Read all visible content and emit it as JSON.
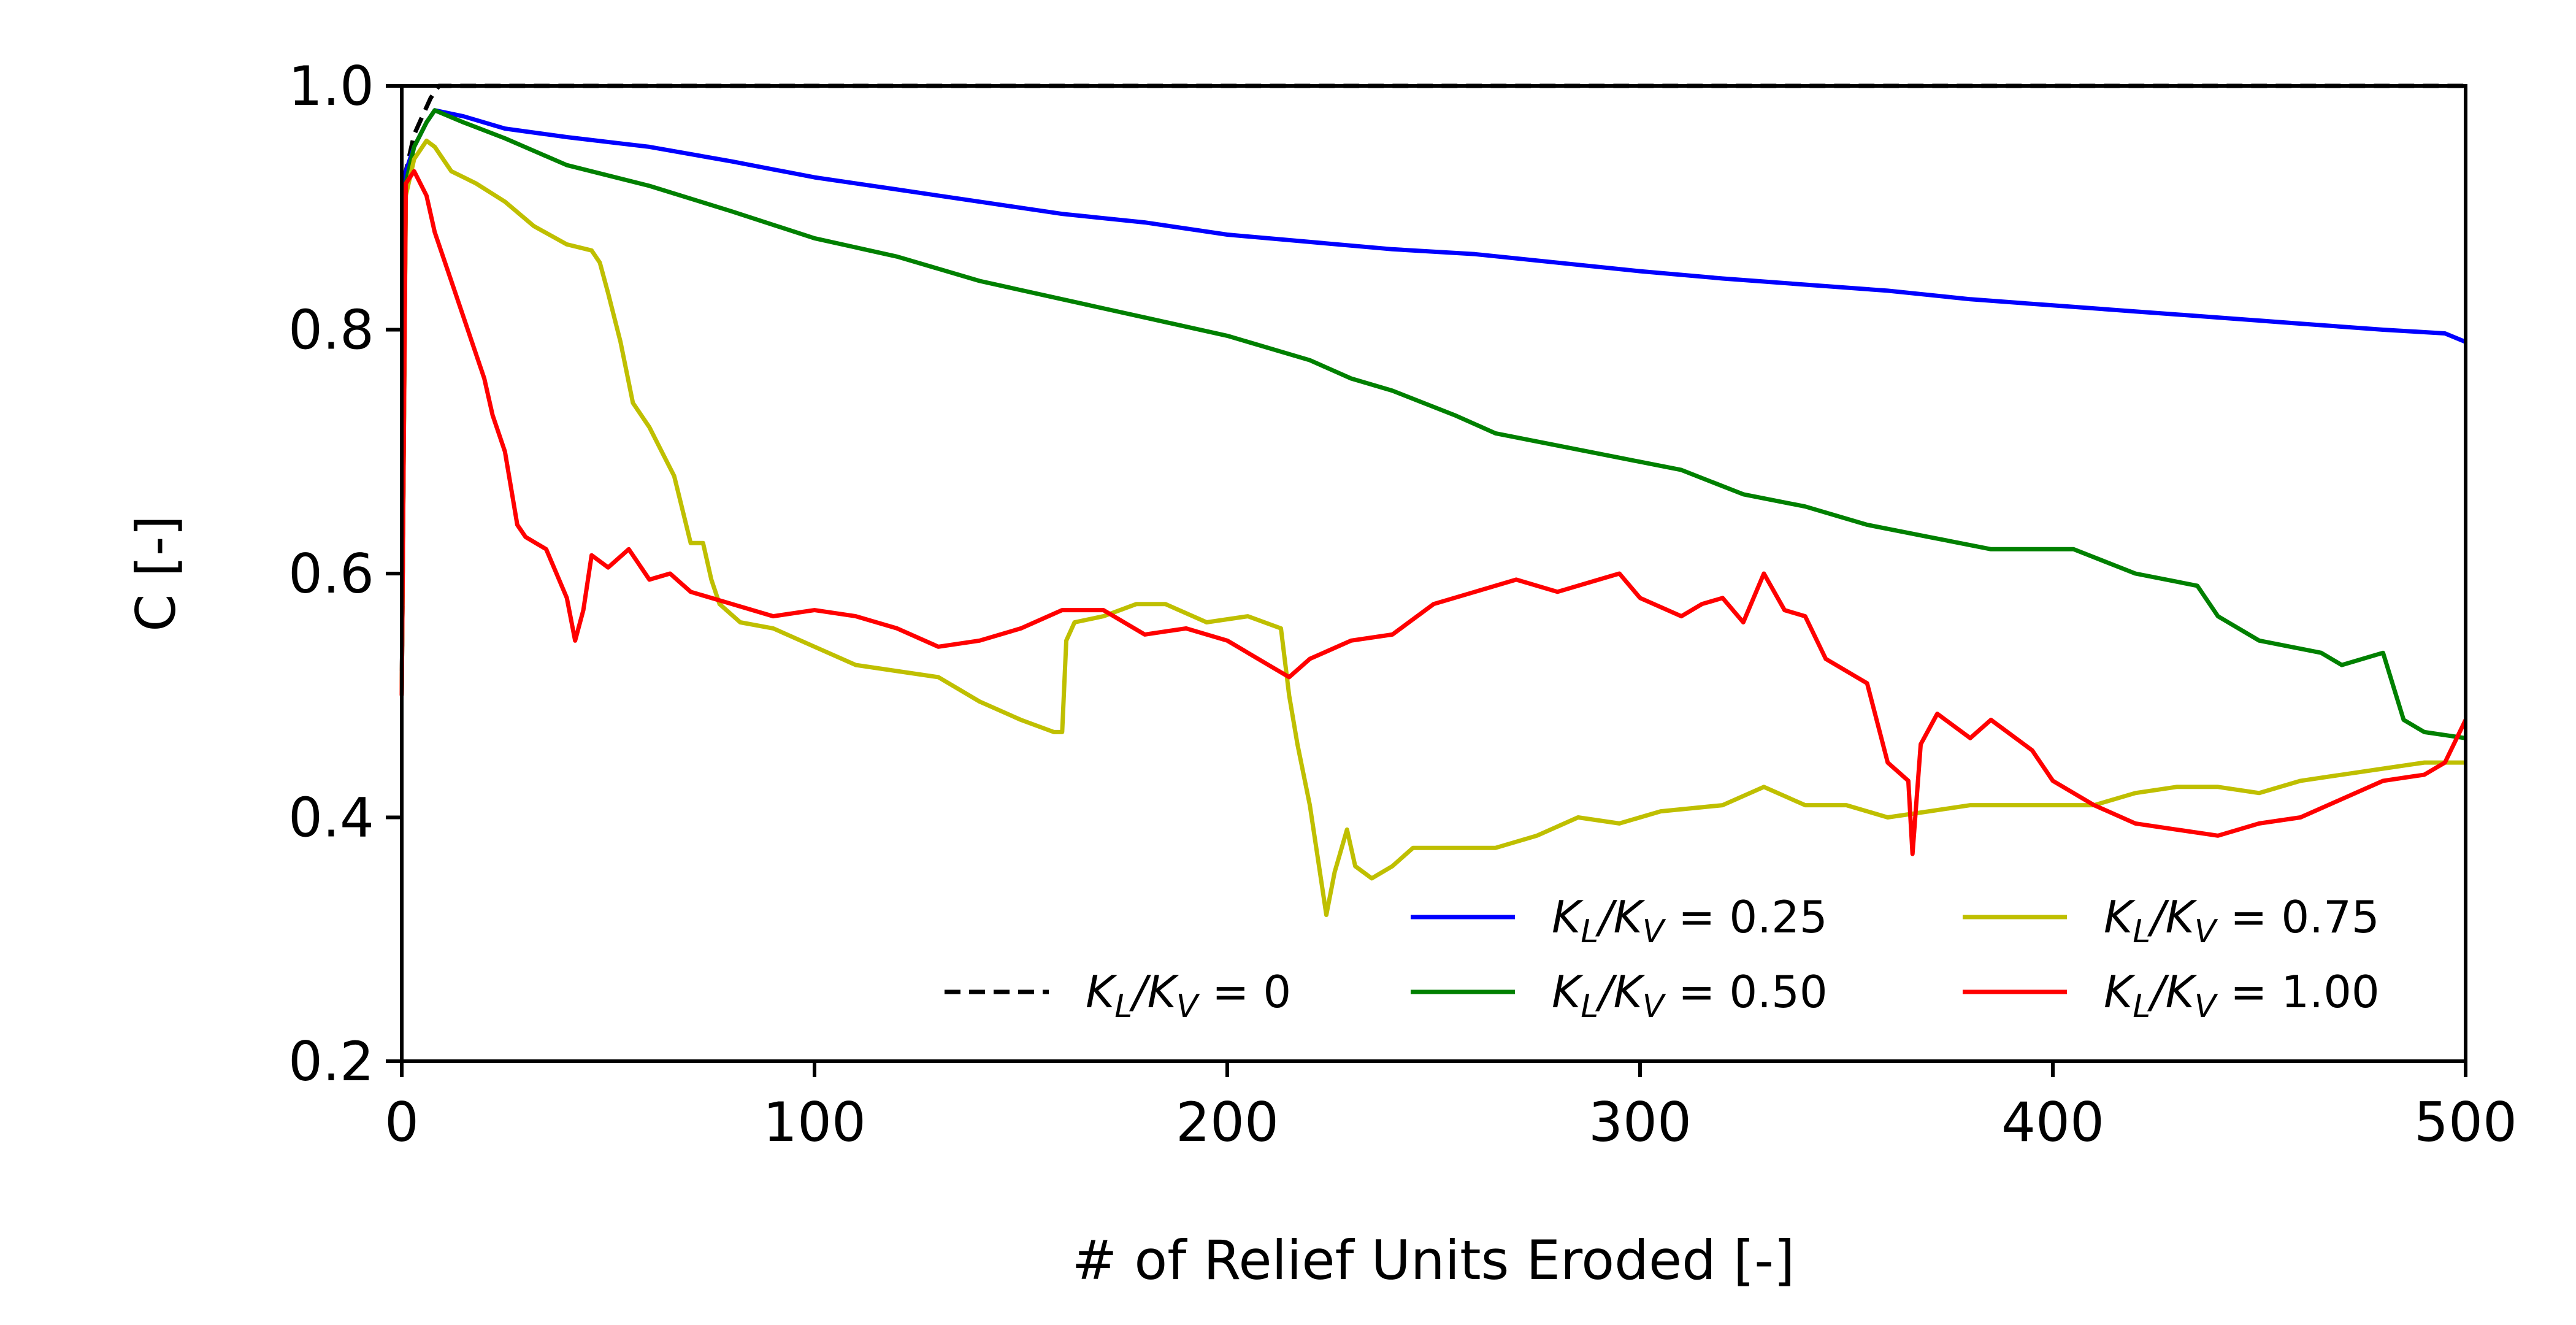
{
  "chart_data": {
    "type": "line",
    "xlabel": "# of Relief Units Eroded [-]",
    "ylabel": "C [-]",
    "xlim": [
      0,
      500
    ],
    "ylim": [
      0.2,
      1.0
    ],
    "xticks": [
      0,
      100,
      200,
      300,
      400,
      500
    ],
    "yticks": [
      0.2,
      0.4,
      0.6,
      0.8,
      1.0
    ],
    "xtick_labels": [
      "0",
      "100",
      "200",
      "300",
      "400",
      "500"
    ],
    "ytick_labels": [
      "0.2",
      "0.4",
      "0.6",
      "0.8",
      "1.0"
    ],
    "grid": false,
    "legend_position": "lower-right",
    "series": [
      {
        "name": "K_L/K_V = 0",
        "color": "#000000",
        "dash": "dashed",
        "points": [
          [
            0,
            0.5
          ],
          [
            1,
            0.93
          ],
          [
            3,
            0.96
          ],
          [
            5,
            0.975
          ],
          [
            7,
            0.99
          ],
          [
            9,
            1.0
          ],
          [
            100,
            1.0
          ],
          [
            200,
            1.0
          ],
          [
            300,
            1.0
          ],
          [
            400,
            1.0
          ],
          [
            500,
            1.0
          ]
        ]
      },
      {
        "name": "K_L/K_V = 0.25",
        "color": "#0000ff",
        "dash": "solid",
        "points": [
          [
            0,
            0.5
          ],
          [
            1,
            0.93
          ],
          [
            3,
            0.95
          ],
          [
            6,
            0.97
          ],
          [
            8,
            0.98
          ],
          [
            15,
            0.975
          ],
          [
            25,
            0.965
          ],
          [
            40,
            0.958
          ],
          [
            60,
            0.95
          ],
          [
            80,
            0.938
          ],
          [
            100,
            0.925
          ],
          [
            120,
            0.915
          ],
          [
            140,
            0.905
          ],
          [
            160,
            0.895
          ],
          [
            180,
            0.888
          ],
          [
            200,
            0.878
          ],
          [
            220,
            0.872
          ],
          [
            240,
            0.866
          ],
          [
            260,
            0.862
          ],
          [
            280,
            0.855
          ],
          [
            300,
            0.848
          ],
          [
            320,
            0.842
          ],
          [
            340,
            0.837
          ],
          [
            360,
            0.832
          ],
          [
            380,
            0.825
          ],
          [
            400,
            0.82
          ],
          [
            420,
            0.815
          ],
          [
            440,
            0.81
          ],
          [
            460,
            0.805
          ],
          [
            480,
            0.8
          ],
          [
            495,
            0.797
          ],
          [
            500,
            0.79
          ]
        ]
      },
      {
        "name": "K_L/K_V = 0.50",
        "color": "#008000",
        "dash": "solid",
        "points": [
          [
            0,
            0.5
          ],
          [
            1,
            0.92
          ],
          [
            3,
            0.95
          ],
          [
            6,
            0.97
          ],
          [
            8,
            0.98
          ],
          [
            15,
            0.97
          ],
          [
            25,
            0.957
          ],
          [
            40,
            0.935
          ],
          [
            60,
            0.918
          ],
          [
            80,
            0.897
          ],
          [
            100,
            0.875
          ],
          [
            120,
            0.86
          ],
          [
            140,
            0.84
          ],
          [
            160,
            0.825
          ],
          [
            180,
            0.81
          ],
          [
            200,
            0.795
          ],
          [
            220,
            0.775
          ],
          [
            230,
            0.76
          ],
          [
            240,
            0.75
          ],
          [
            255,
            0.73
          ],
          [
            265,
            0.715
          ],
          [
            280,
            0.705
          ],
          [
            295,
            0.695
          ],
          [
            310,
            0.685
          ],
          [
            325,
            0.665
          ],
          [
            340,
            0.655
          ],
          [
            355,
            0.64
          ],
          [
            370,
            0.63
          ],
          [
            385,
            0.62
          ],
          [
            405,
            0.62
          ],
          [
            420,
            0.6
          ],
          [
            435,
            0.59
          ],
          [
            440,
            0.565
          ],
          [
            450,
            0.545
          ],
          [
            465,
            0.535
          ],
          [
            470,
            0.525
          ],
          [
            480,
            0.535
          ],
          [
            485,
            0.48
          ],
          [
            490,
            0.47
          ],
          [
            500,
            0.465
          ]
        ]
      },
      {
        "name": "K_L/K_V = 0.75",
        "color": "#bfbf00",
        "dash": "solid",
        "points": [
          [
            0,
            0.5
          ],
          [
            1,
            0.91
          ],
          [
            3,
            0.94
          ],
          [
            6,
            0.955
          ],
          [
            8,
            0.95
          ],
          [
            12,
            0.93
          ],
          [
            18,
            0.92
          ],
          [
            25,
            0.905
          ],
          [
            32,
            0.885
          ],
          [
            40,
            0.87
          ],
          [
            46,
            0.865
          ],
          [
            48,
            0.855
          ],
          [
            50,
            0.83
          ],
          [
            53,
            0.79
          ],
          [
            56,
            0.74
          ],
          [
            60,
            0.72
          ],
          [
            63,
            0.7
          ],
          [
            66,
            0.68
          ],
          [
            70,
            0.625
          ],
          [
            73,
            0.625
          ],
          [
            75,
            0.595
          ],
          [
            77,
            0.575
          ],
          [
            82,
            0.56
          ],
          [
            90,
            0.555
          ],
          [
            100,
            0.54
          ],
          [
            110,
            0.525
          ],
          [
            120,
            0.52
          ],
          [
            130,
            0.515
          ],
          [
            140,
            0.495
          ],
          [
            150,
            0.48
          ],
          [
            158,
            0.47
          ],
          [
            160,
            0.47
          ],
          [
            161,
            0.545
          ],
          [
            163,
            0.56
          ],
          [
            170,
            0.565
          ],
          [
            178,
            0.575
          ],
          [
            185,
            0.575
          ],
          [
            195,
            0.56
          ],
          [
            205,
            0.565
          ],
          [
            213,
            0.555
          ],
          [
            215,
            0.5
          ],
          [
            217,
            0.46
          ],
          [
            220,
            0.41
          ],
          [
            222,
            0.365
          ],
          [
            224,
            0.32
          ],
          [
            226,
            0.355
          ],
          [
            229,
            0.39
          ],
          [
            231,
            0.36
          ],
          [
            235,
            0.35
          ],
          [
            240,
            0.36
          ],
          [
            245,
            0.375
          ],
          [
            255,
            0.375
          ],
          [
            265,
            0.375
          ],
          [
            275,
            0.385
          ],
          [
            285,
            0.4
          ],
          [
            295,
            0.395
          ],
          [
            305,
            0.405
          ],
          [
            320,
            0.41
          ],
          [
            330,
            0.425
          ],
          [
            340,
            0.41
          ],
          [
            350,
            0.41
          ],
          [
            360,
            0.4
          ],
          [
            370,
            0.405
          ],
          [
            380,
            0.41
          ],
          [
            390,
            0.41
          ],
          [
            400,
            0.41
          ],
          [
            410,
            0.41
          ],
          [
            420,
            0.42
          ],
          [
            430,
            0.425
          ],
          [
            440,
            0.425
          ],
          [
            450,
            0.42
          ],
          [
            460,
            0.43
          ],
          [
            470,
            0.435
          ],
          [
            480,
            0.44
          ],
          [
            490,
            0.445
          ],
          [
            500,
            0.445
          ]
        ]
      },
      {
        "name": "K_L/K_V = 1.00",
        "color": "#ff0000",
        "dash": "solid",
        "points": [
          [
            0,
            0.5
          ],
          [
            1,
            0.92
          ],
          [
            3,
            0.93
          ],
          [
            6,
            0.91
          ],
          [
            8,
            0.88
          ],
          [
            12,
            0.84
          ],
          [
            16,
            0.8
          ],
          [
            20,
            0.76
          ],
          [
            22,
            0.73
          ],
          [
            25,
            0.7
          ],
          [
            28,
            0.64
          ],
          [
            30,
            0.63
          ],
          [
            35,
            0.62
          ],
          [
            40,
            0.58
          ],
          [
            42,
            0.545
          ],
          [
            44,
            0.57
          ],
          [
            46,
            0.615
          ],
          [
            50,
            0.605
          ],
          [
            55,
            0.62
          ],
          [
            60,
            0.595
          ],
          [
            65,
            0.6
          ],
          [
            70,
            0.585
          ],
          [
            80,
            0.575
          ],
          [
            90,
            0.565
          ],
          [
            100,
            0.57
          ],
          [
            110,
            0.565
          ],
          [
            120,
            0.555
          ],
          [
            130,
            0.54
          ],
          [
            140,
            0.545
          ],
          [
            150,
            0.555
          ],
          [
            160,
            0.57
          ],
          [
            170,
            0.57
          ],
          [
            180,
            0.55
          ],
          [
            190,
            0.555
          ],
          [
            200,
            0.545
          ],
          [
            210,
            0.525
          ],
          [
            215,
            0.515
          ],
          [
            220,
            0.53
          ],
          [
            230,
            0.545
          ],
          [
            240,
            0.55
          ],
          [
            250,
            0.575
          ],
          [
            260,
            0.585
          ],
          [
            270,
            0.595
          ],
          [
            280,
            0.585
          ],
          [
            290,
            0.595
          ],
          [
            295,
            0.6
          ],
          [
            300,
            0.58
          ],
          [
            310,
            0.565
          ],
          [
            315,
            0.575
          ],
          [
            320,
            0.58
          ],
          [
            325,
            0.56
          ],
          [
            330,
            0.6
          ],
          [
            335,
            0.57
          ],
          [
            340,
            0.565
          ],
          [
            345,
            0.53
          ],
          [
            350,
            0.52
          ],
          [
            355,
            0.51
          ],
          [
            360,
            0.445
          ],
          [
            365,
            0.43
          ],
          [
            366,
            0.37
          ],
          [
            368,
            0.46
          ],
          [
            372,
            0.485
          ],
          [
            380,
            0.465
          ],
          [
            385,
            0.48
          ],
          [
            395,
            0.455
          ],
          [
            400,
            0.43
          ],
          [
            410,
            0.41
          ],
          [
            420,
            0.395
          ],
          [
            430,
            0.39
          ],
          [
            440,
            0.385
          ],
          [
            450,
            0.395
          ],
          [
            460,
            0.4
          ],
          [
            470,
            0.415
          ],
          [
            480,
            0.43
          ],
          [
            490,
            0.435
          ],
          [
            495,
            0.445
          ],
          [
            500,
            0.48
          ]
        ]
      }
    ]
  }
}
